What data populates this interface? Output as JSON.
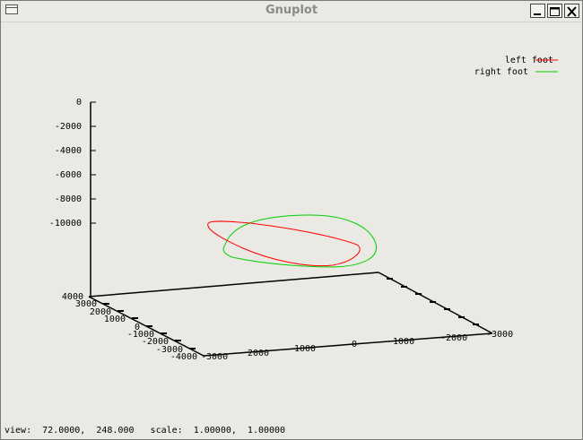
{
  "window": {
    "title": "Gnuplot",
    "buttons": [
      "minimize",
      "maximize",
      "close"
    ]
  },
  "status": {
    "text": "view:  72.0000,  248.000   scale:  1.00000,  1.00000"
  },
  "chart_data": {
    "type": "line",
    "is_3d": true,
    "view": {
      "rot_x": 72.0,
      "rot_z": 248.0,
      "scale": 1.0,
      "scale_z": 1.0
    },
    "legend": {
      "placement": "top-right"
    },
    "z_axis": {
      "ticks": [
        "0",
        "-2000",
        "-4000",
        "-6000",
        "-8000",
        "-10000"
      ]
    },
    "x_axis": {
      "ticks": [
        "4000",
        "3000",
        "2000",
        "1000",
        "0",
        "-1000",
        "-2000",
        "-3000",
        "-4000"
      ]
    },
    "y_axis": {
      "ticks": [
        "-3000",
        "2000",
        "1000",
        "0",
        "-1000",
        "-2000",
        "-3000"
      ]
    },
    "series": [
      {
        "name": "left foot",
        "color": "#ff0000"
      },
      {
        "name": "right foot",
        "color": "#00d000"
      }
    ]
  }
}
